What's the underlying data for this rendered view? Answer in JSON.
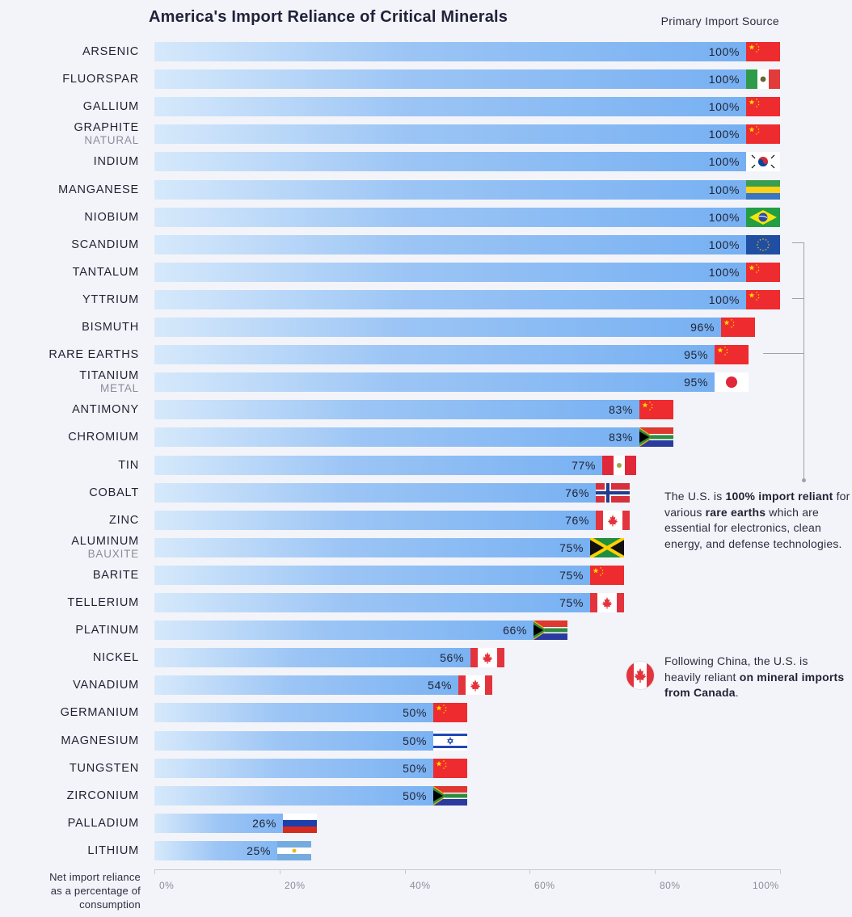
{
  "title": "America's Import Reliance of Critical Minerals",
  "source_label": "Primary Import Source",
  "axis": {
    "title_lines": [
      "Net import reliance",
      "as a percentage of",
      "consumption"
    ],
    "ticks": [
      "0%",
      "20%",
      "40%",
      "60%",
      "80%",
      "100%"
    ]
  },
  "notes": {
    "rare_earths": {
      "pre": "The U.S. is ",
      "bold1": "100% import reliant",
      "mid": " for various ",
      "bold2": "rare earths",
      "post": " which are essential for electronics, clean energy, and defense technologies."
    },
    "canada": {
      "pre": "Following China, the U.S. is heavily reliant ",
      "bold": "on mineral imports from Canada",
      "post": "."
    }
  },
  "chart_data": {
    "type": "bar",
    "orientation": "horizontal",
    "title": "America's Import Reliance of Critical Minerals",
    "xlabel": "Net import reliance as a percentage of consumption",
    "xlim": [
      0,
      100
    ],
    "categories": [
      {
        "name": "ARSENIC",
        "sub": "",
        "value": 100,
        "source": "china"
      },
      {
        "name": "FLUORSPAR",
        "sub": "",
        "value": 100,
        "source": "mexico"
      },
      {
        "name": "GALLIUM",
        "sub": "",
        "value": 100,
        "source": "china"
      },
      {
        "name": "GRAPHITE",
        "sub": "NATURAL",
        "value": 100,
        "source": "china"
      },
      {
        "name": "INDIUM",
        "sub": "",
        "value": 100,
        "source": "south-korea"
      },
      {
        "name": "MANGANESE",
        "sub": "",
        "value": 100,
        "source": "gabon"
      },
      {
        "name": "NIOBIUM",
        "sub": "",
        "value": 100,
        "source": "brazil"
      },
      {
        "name": "SCANDIUM",
        "sub": "",
        "value": 100,
        "source": "eu"
      },
      {
        "name": "TANTALUM",
        "sub": "",
        "value": 100,
        "source": "china"
      },
      {
        "name": "YTTRIUM",
        "sub": "",
        "value": 100,
        "source": "china"
      },
      {
        "name": "BISMUTH",
        "sub": "",
        "value": 96,
        "source": "china"
      },
      {
        "name": "RARE EARTHS",
        "sub": "",
        "value": 95,
        "source": "china"
      },
      {
        "name": "TITANIUM",
        "sub": "METAL",
        "value": 95,
        "source": "japan"
      },
      {
        "name": "ANTIMONY",
        "sub": "",
        "value": 83,
        "source": "china"
      },
      {
        "name": "CHROMIUM",
        "sub": "",
        "value": 83,
        "source": "south-africa"
      },
      {
        "name": "TIN",
        "sub": "",
        "value": 77,
        "source": "peru"
      },
      {
        "name": "COBALT",
        "sub": "",
        "value": 76,
        "source": "norway"
      },
      {
        "name": "ZINC",
        "sub": "",
        "value": 76,
        "source": "canada"
      },
      {
        "name": "ALUMINUM",
        "sub": "BAUXITE",
        "value": 75,
        "source": "jamaica"
      },
      {
        "name": "BARITE",
        "sub": "",
        "value": 75,
        "source": "china"
      },
      {
        "name": "TELLERIUM",
        "sub": "",
        "value": 75,
        "source": "canada"
      },
      {
        "name": "PLATINUM",
        "sub": "",
        "value": 66,
        "source": "south-africa"
      },
      {
        "name": "NICKEL",
        "sub": "",
        "value": 56,
        "source": "canada"
      },
      {
        "name": "VANADIUM",
        "sub": "",
        "value": 54,
        "source": "canada"
      },
      {
        "name": "GERMANIUM",
        "sub": "",
        "value": 50,
        "source": "china"
      },
      {
        "name": "MAGNESIUM",
        "sub": "",
        "value": 50,
        "source": "israel"
      },
      {
        "name": "TUNGSTEN",
        "sub": "",
        "value": 50,
        "source": "china"
      },
      {
        "name": "ZIRCONIUM",
        "sub": "",
        "value": 50,
        "source": "south-africa"
      },
      {
        "name": "PALLADIUM",
        "sub": "",
        "value": 26,
        "source": "russia"
      },
      {
        "name": "LITHIUM",
        "sub": "",
        "value": 25,
        "source": "argentina"
      }
    ]
  }
}
